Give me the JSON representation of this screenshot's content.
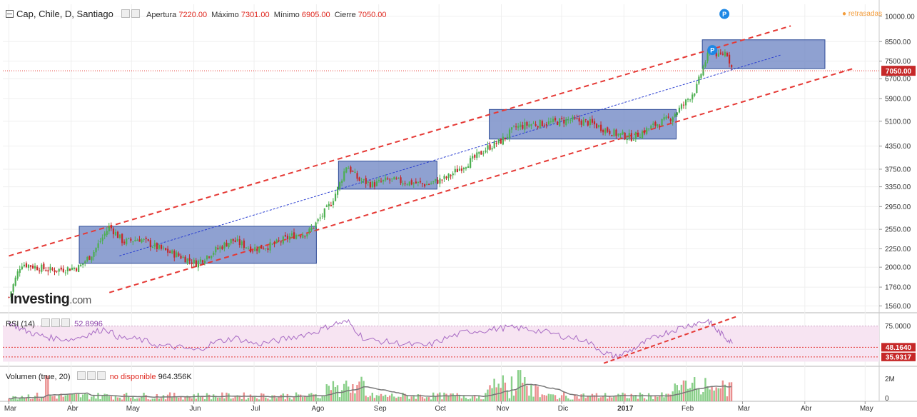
{
  "header": {
    "symbol": "Cap, Chile, D, Santiago",
    "open_label": "Apertura",
    "open_value": "7220.00",
    "high_label": "Máximo",
    "high_value": "7301.00",
    "low_label": "Mínimo",
    "low_value": "6905.00",
    "close_label": "Cierre",
    "close_value": "7050.00",
    "delayed_label": "retrasadas"
  },
  "logo": {
    "brand": "Investing",
    "suffix": ".com"
  },
  "colors": {
    "up": "#4caf50",
    "down": "#c62828",
    "box": "#6f86c4",
    "channel": "#e53935",
    "rsi": "#a86bc4",
    "accent": "#f39c3a"
  },
  "chart_data": [
    {
      "type": "candlestick",
      "yscale": "log",
      "ylim": [
        1500,
        10800
      ],
      "yticks": [
        "10000.00",
        "8500.00",
        "7500.00",
        "6700.00",
        "5900.00",
        "5100.00",
        "4350.00",
        "3750.00",
        "3350.00",
        "2950.00",
        "2550.00",
        "2250.00",
        "2000.00",
        "1760.00",
        "1560.00"
      ],
      "last_price_label": "7050.00",
      "x_labels": [
        "Mar",
        "Abr",
        "May",
        "Jun",
        "Jul",
        "Ago",
        "Sep",
        "Oct",
        "Nov",
        "Dic",
        "2017",
        "Feb",
        "Mar",
        "Abr",
        "May"
      ],
      "close_path": [
        [
          "2016-03-01",
          1650
        ],
        [
          "2016-03-07",
          2050
        ],
        [
          "2016-03-15",
          2000
        ],
        [
          "2016-03-22",
          1960
        ],
        [
          "2016-04-05",
          2000
        ],
        [
          "2016-04-12",
          2200
        ],
        [
          "2016-04-20",
          2600
        ],
        [
          "2016-04-27",
          2350
        ],
        [
          "2016-05-05",
          2400
        ],
        [
          "2016-05-15",
          2250
        ],
        [
          "2016-05-25",
          2150
        ],
        [
          "2016-06-02",
          2050
        ],
        [
          "2016-06-10",
          2200
        ],
        [
          "2016-06-20",
          2380
        ],
        [
          "2016-06-30",
          2250
        ],
        [
          "2016-07-10",
          2300
        ],
        [
          "2016-07-20",
          2450
        ],
        [
          "2016-07-28",
          2500
        ],
        [
          "2016-08-02",
          2700
        ],
        [
          "2016-08-08",
          3000
        ],
        [
          "2016-08-12",
          3350
        ],
        [
          "2016-08-16",
          3850
        ],
        [
          "2016-08-22",
          3500
        ],
        [
          "2016-08-29",
          3400
        ],
        [
          "2016-09-06",
          3500
        ],
        [
          "2016-09-15",
          3450
        ],
        [
          "2016-09-25",
          3400
        ],
        [
          "2016-10-05",
          3550
        ],
        [
          "2016-10-12",
          3800
        ],
        [
          "2016-10-18",
          4000
        ],
        [
          "2016-10-25",
          4300
        ],
        [
          "2016-11-01",
          4500
        ],
        [
          "2016-11-08",
          4900
        ],
        [
          "2016-11-15",
          5000
        ],
        [
          "2016-11-25",
          5050
        ],
        [
          "2016-12-05",
          5150
        ],
        [
          "2016-12-15",
          5050
        ],
        [
          "2016-12-28",
          4700
        ],
        [
          "2017-01-05",
          4600
        ],
        [
          "2017-01-10",
          4750
        ],
        [
          "2017-01-17",
          5000
        ],
        [
          "2017-01-24",
          5200
        ],
        [
          "2017-01-31",
          5700
        ],
        [
          "2017-02-06",
          6300
        ],
        [
          "2017-02-10",
          7400
        ],
        [
          "2017-02-14",
          8200
        ],
        [
          "2017-02-17",
          7700
        ],
        [
          "2017-02-21",
          8000
        ],
        [
          "2017-02-24",
          7050
        ]
      ],
      "consolidation_boxes": [
        {
          "from": "2016-04-05",
          "to": "2016-08-01",
          "low": 2050,
          "high": 2600
        },
        {
          "from": "2016-08-12",
          "to": "2016-09-30",
          "low": 3300,
          "high": 3950
        },
        {
          "from": "2016-10-26",
          "to": "2017-01-27",
          "low": 4550,
          "high": 5500
        },
        {
          "from": "2017-02-09",
          "to": "2017-04-11",
          "low": 7150,
          "high": 8600
        }
      ],
      "marker_labels": [
        "P",
        "P"
      ]
    },
    {
      "type": "line",
      "name": "RSI (14)",
      "last_value": "52.8996",
      "ylim": [
        25,
        90
      ],
      "levels": [
        "75.0000",
        "48.1640",
        "35.9317"
      ],
      "path": [
        [
          "2016-03-01",
          80
        ],
        [
          "2016-03-08",
          70
        ],
        [
          "2016-03-15",
          64
        ],
        [
          "2016-03-22",
          60
        ],
        [
          "2016-04-01",
          58
        ],
        [
          "2016-04-10",
          65
        ],
        [
          "2016-04-18",
          72
        ],
        [
          "2016-04-25",
          60
        ],
        [
          "2016-05-05",
          58
        ],
        [
          "2016-05-15",
          50
        ],
        [
          "2016-05-25",
          48
        ],
        [
          "2016-06-02",
          44
        ],
        [
          "2016-06-12",
          55
        ],
        [
          "2016-06-22",
          60
        ],
        [
          "2016-07-02",
          52
        ],
        [
          "2016-07-12",
          56
        ],
        [
          "2016-07-22",
          62
        ],
        [
          "2016-08-01",
          68
        ],
        [
          "2016-08-10",
          78
        ],
        [
          "2016-08-17",
          80
        ],
        [
          "2016-08-25",
          58
        ],
        [
          "2016-09-05",
          55
        ],
        [
          "2016-09-15",
          52
        ],
        [
          "2016-09-25",
          50
        ],
        [
          "2016-10-05",
          60
        ],
        [
          "2016-10-15",
          68
        ],
        [
          "2016-10-25",
          70
        ],
        [
          "2016-11-03",
          73
        ],
        [
          "2016-11-12",
          72
        ],
        [
          "2016-11-22",
          68
        ],
        [
          "2016-12-02",
          62
        ],
        [
          "2016-12-12",
          58
        ],
        [
          "2016-12-22",
          42
        ],
        [
          "2016-12-28",
          36
        ],
        [
          "2017-01-05",
          45
        ],
        [
          "2017-01-12",
          55
        ],
        [
          "2017-01-20",
          65
        ],
        [
          "2017-01-28",
          72
        ],
        [
          "2017-02-05",
          78
        ],
        [
          "2017-02-12",
          82
        ],
        [
          "2017-02-16",
          70
        ],
        [
          "2017-02-20",
          62
        ],
        [
          "2017-02-24",
          53
        ]
      ]
    },
    {
      "type": "bar",
      "name": "Volumen (true, 20)",
      "status_text": "no disponible",
      "last_value": "964.356K",
      "yticks": [
        "2M",
        "0"
      ],
      "ylim": [
        0,
        3000000
      ]
    }
  ]
}
